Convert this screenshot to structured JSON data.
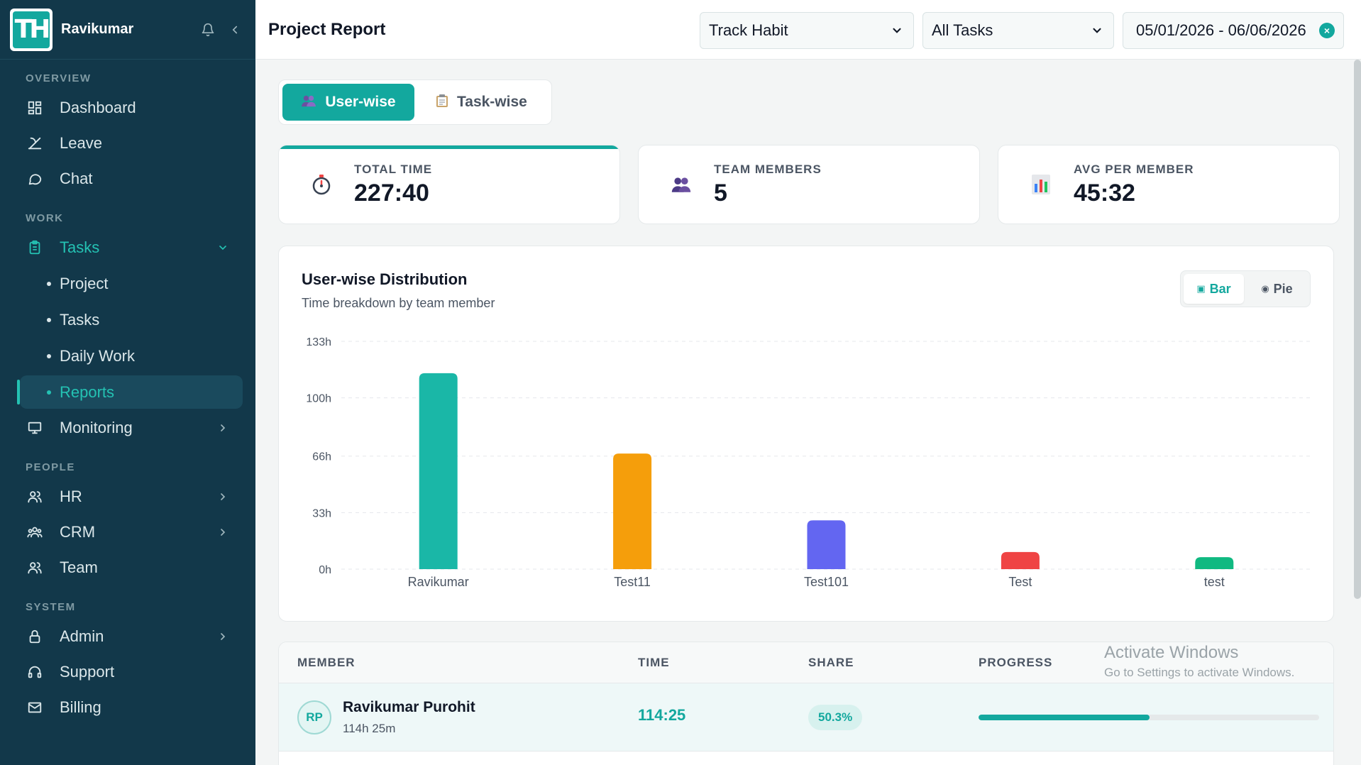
{
  "sidebar": {
    "brand_name": "Ravikumar",
    "sections": {
      "overview": "OVERVIEW",
      "work": "WORK",
      "people": "PEOPLE",
      "system": "SYSTEM"
    },
    "items": {
      "dashboard": "Dashboard",
      "leave": "Leave",
      "chat": "Chat",
      "tasks": "Tasks",
      "project": "Project",
      "tasks_sub": "Tasks",
      "daily_work": "Daily Work",
      "reports": "Reports",
      "monitoring": "Monitoring",
      "hr": "HR",
      "crm": "CRM",
      "team": "Team",
      "admin": "Admin",
      "support": "Support",
      "billing": "Billing"
    }
  },
  "header": {
    "title": "Project Report",
    "project_select": "Track Habit",
    "task_select": "All Tasks",
    "date_range": "05/01/2026 - 06/06/2026"
  },
  "tabs": {
    "user_wise": "User-wise",
    "task_wise": "Task-wise"
  },
  "stats": {
    "total_time_label": "TOTAL TIME",
    "total_time": "227:40",
    "team_members_label": "TEAM MEMBERS",
    "team_members": "5",
    "avg_label": "AVG PER MEMBER",
    "avg": "45:32"
  },
  "chart_card": {
    "title": "User-wise Distribution",
    "subtitle": "Time breakdown by team member",
    "bar_label": "Bar",
    "pie_label": "Pie"
  },
  "chart_data": {
    "type": "bar",
    "categories": [
      "Ravikumar",
      "Test11",
      "Test101",
      "Test",
      "test"
    ],
    "values": [
      114.4,
      67.5,
      28.5,
      10,
      7
    ],
    "colors": [
      "#1ab7a7",
      "#f59e0b",
      "#6366f1",
      "#ef4444",
      "#10b981"
    ],
    "yticks": [
      "0h",
      "33h",
      "66h",
      "100h",
      "133h"
    ],
    "ytick_values": [
      0,
      33,
      66,
      100,
      133
    ],
    "ylim": [
      0,
      133
    ],
    "grid": true,
    "title": "",
    "xlabel": "",
    "ylabel": ""
  },
  "table": {
    "headers": {
      "member": "MEMBER",
      "time": "TIME",
      "share": "SHARE",
      "progress": "PROGRESS"
    },
    "rows": [
      {
        "initials": "RP",
        "name": "Ravikumar Purohit",
        "sub": "114h 25m",
        "time": "114:25",
        "share": "50.3%",
        "progress": 0.503
      }
    ]
  },
  "watermark": {
    "line1": "Activate Windows",
    "line2": "Go to Settings to activate Windows."
  }
}
